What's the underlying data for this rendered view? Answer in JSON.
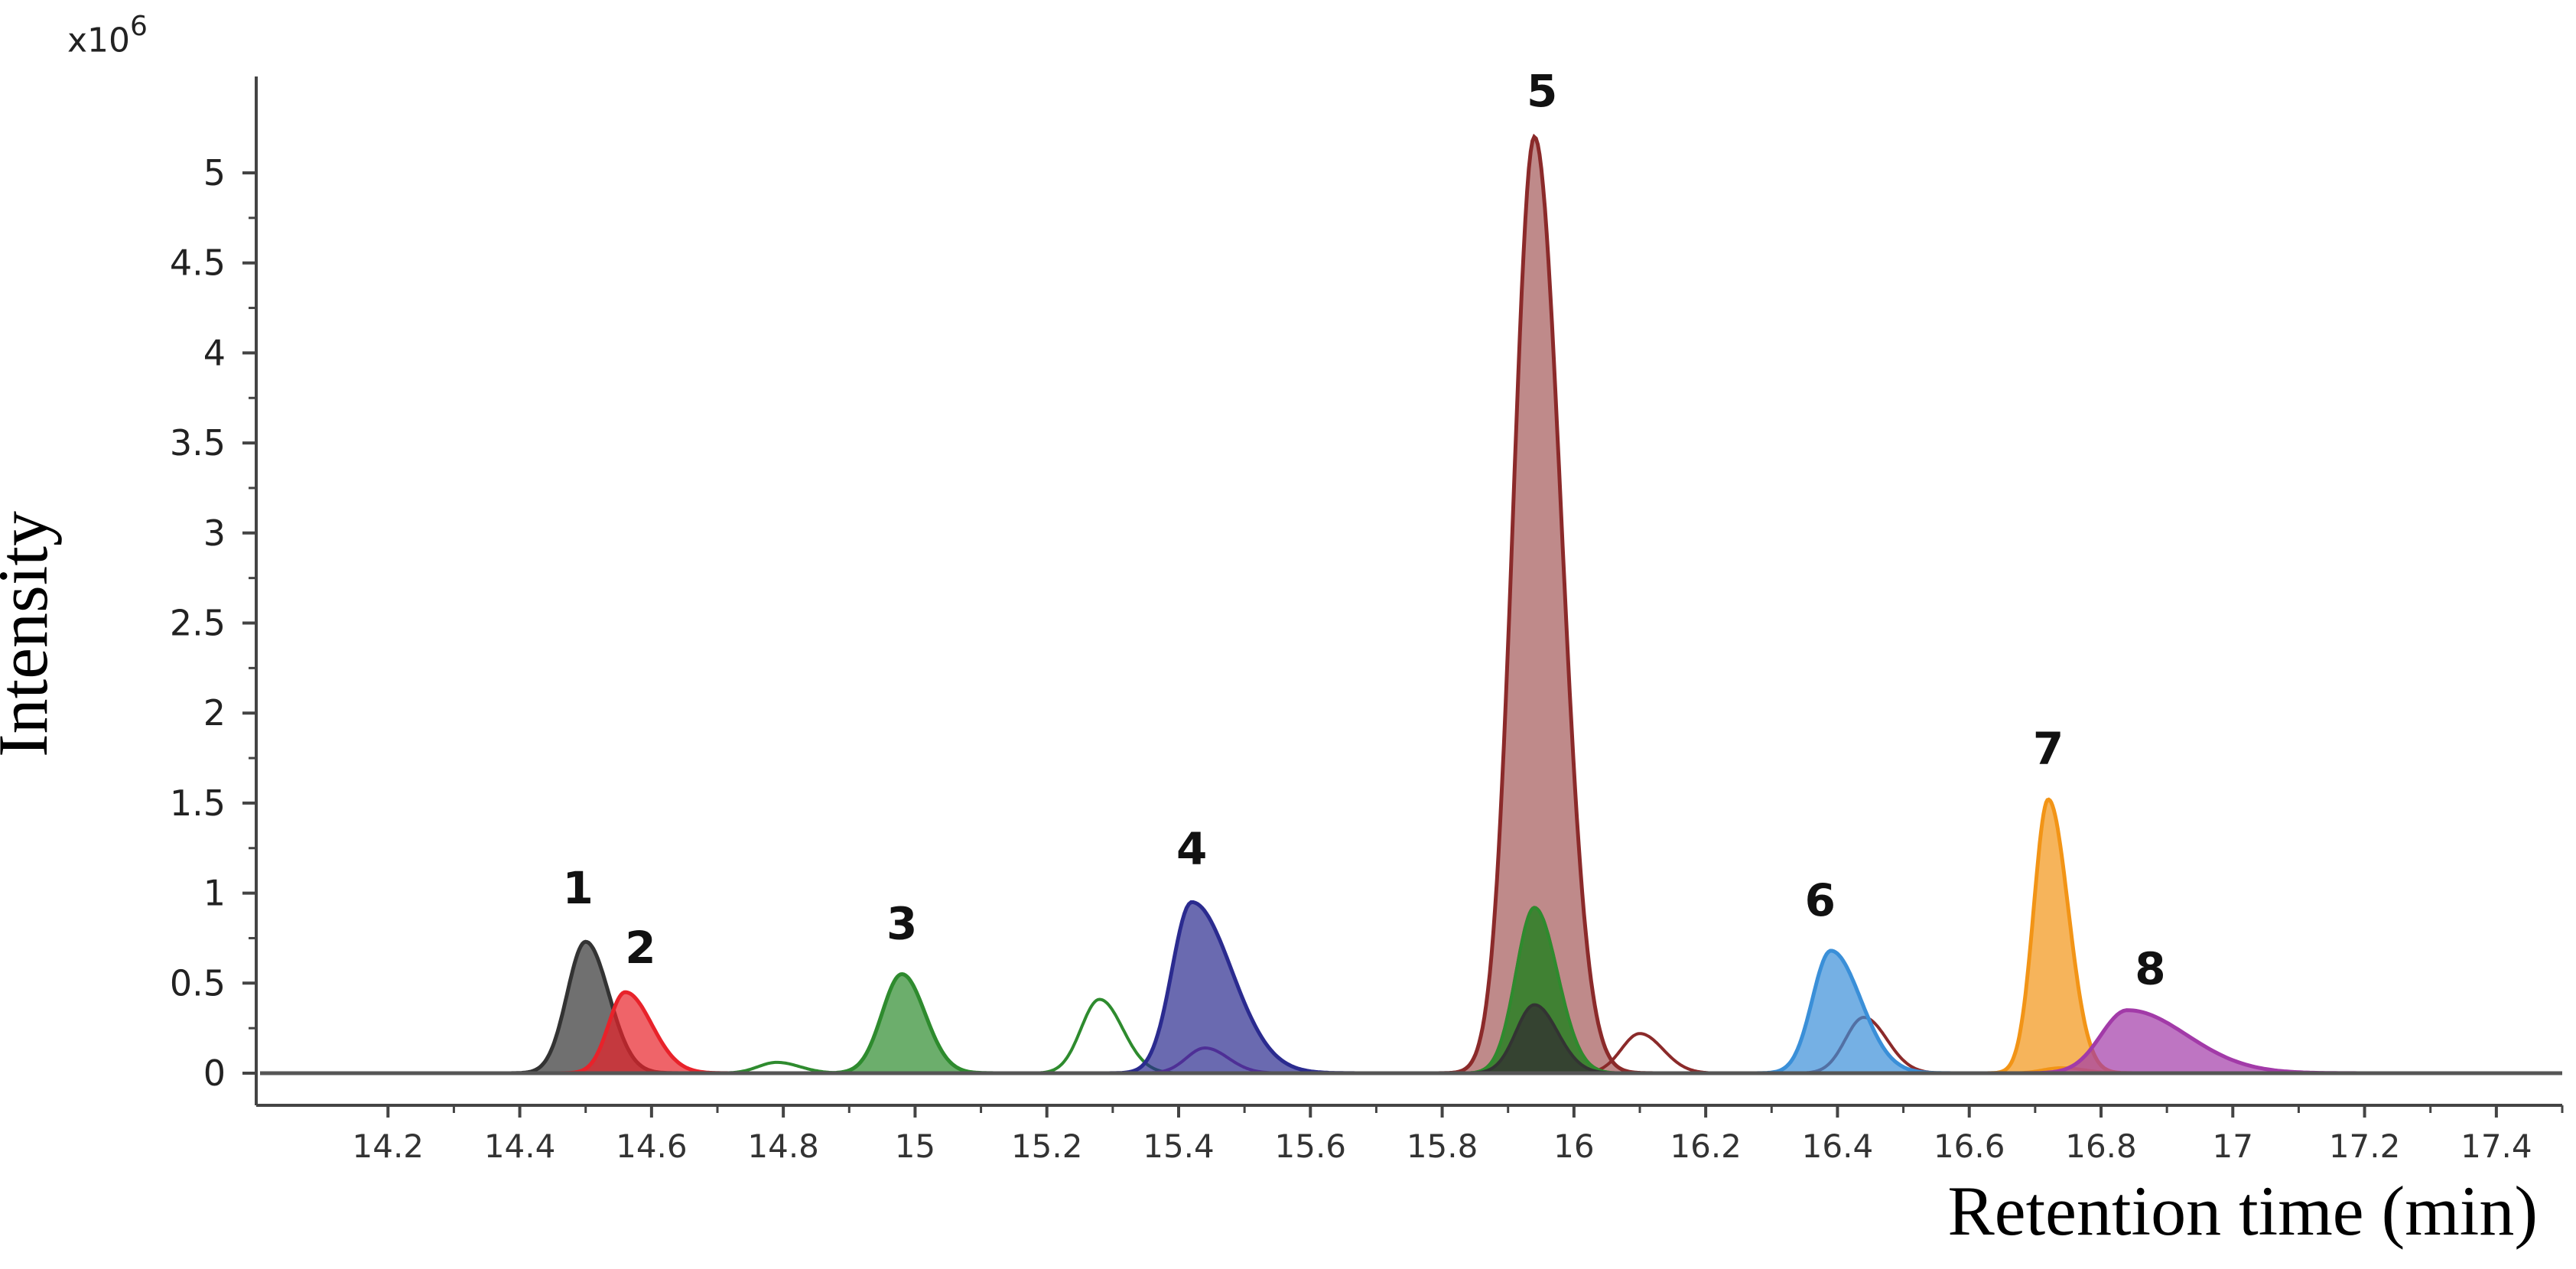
{
  "chart_data": {
    "type": "line",
    "title": "",
    "xlabel": "Retention time (min)",
    "ylabel": "Intensity",
    "y_multiplier_label": "x10",
    "y_multiplier_exponent": "6",
    "xlim": [
      14.0,
      17.5
    ],
    "ylim": [
      -0.05,
      5.5
    ],
    "x_ticks": [
      "14.2",
      "14.4",
      "14.6",
      "14.8",
      "15",
      "15.2",
      "15.4",
      "15.6",
      "15.8",
      "16",
      "16.2",
      "16.4",
      "16.6",
      "16.8",
      "17",
      "17.2",
      "17.4"
    ],
    "y_ticks": [
      "0",
      "0.5",
      "1",
      "1.5",
      "2",
      "2.5",
      "3",
      "3.5",
      "4",
      "4.5",
      "5"
    ],
    "grid": false,
    "colors": {
      "peak1": "#333333",
      "peak2": "#e8222a",
      "peak3": "#2e8b2e",
      "peak4": "#2b2b8f",
      "peak5": "#8b2a2a",
      "peak6": "#3a8fd8",
      "peak7": "#f29416",
      "peak8": "#a23aa8"
    },
    "peaks": [
      {
        "label": "1",
        "rt": 14.5,
        "height": 0.73
      },
      {
        "label": "2",
        "rt": 14.56,
        "height": 0.45
      },
      {
        "label": "3",
        "rt": 14.98,
        "height": 0.55
      },
      {
        "label": "4",
        "rt": 15.42,
        "height": 0.95
      },
      {
        "label": "5",
        "rt": 15.94,
        "height": 5.2
      },
      {
        "label": "6",
        "rt": 16.39,
        "height": 0.68
      },
      {
        "label": "7",
        "rt": 16.72,
        "height": 1.52
      },
      {
        "label": "8",
        "rt": 16.84,
        "height": 0.35
      }
    ],
    "minor_traces": [
      {
        "color": "#2e8b2e",
        "rt": 14.79,
        "height": 0.06
      },
      {
        "color": "#2e8b2e",
        "rt": 15.28,
        "height": 0.41
      },
      {
        "color": "#2e8b2e",
        "rt": 15.94,
        "height": 0.92
      },
      {
        "color": "#333333",
        "rt": 15.94,
        "height": 0.38
      },
      {
        "color": "#a23aa8",
        "rt": 15.44,
        "height": 0.14
      },
      {
        "color": "#8b2a2a",
        "rt": 16.1,
        "height": 0.22
      },
      {
        "color": "#8b2a2a",
        "rt": 16.44,
        "height": 0.31
      },
      {
        "color": "#f29416",
        "rt": 16.74,
        "height": 0.03
      }
    ]
  }
}
